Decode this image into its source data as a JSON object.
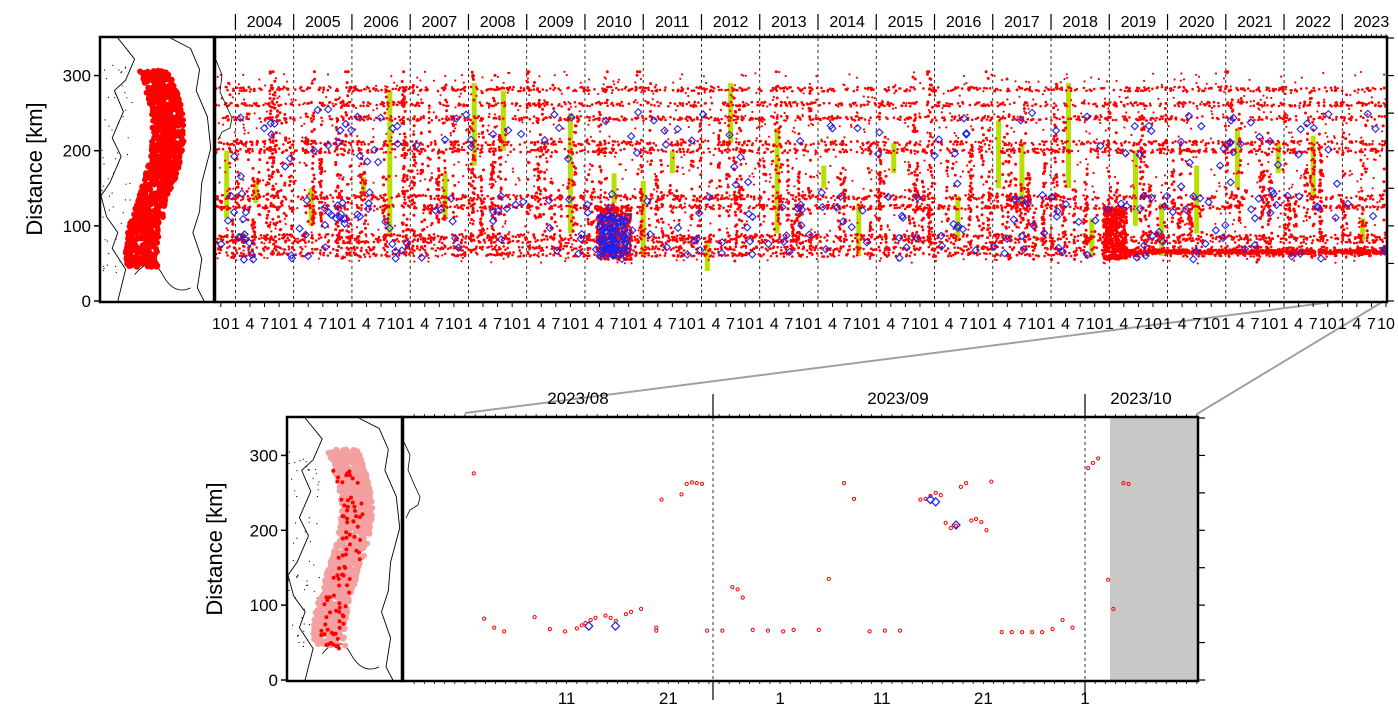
{
  "colors": {
    "event": "#ff0000",
    "event_light": "#f4a0a0",
    "diamond": "#2020ee",
    "highlight": "#b7e000",
    "shade": "#c8c8c8",
    "connector": "#a0a0a0",
    "grid": "#000000"
  },
  "chart_data": [
    {
      "id": "long-term",
      "type": "scatter",
      "ylabel": "Distance [km]",
      "ylim": [
        0,
        350
      ],
      "yticks": [
        "0",
        "100",
        "200",
        "300"
      ],
      "xlim": [
        "2003-09",
        "2023-10"
      ],
      "years": [
        "2004",
        "2005",
        "2006",
        "2007",
        "2008",
        "2009",
        "2010",
        "2011",
        "2012",
        "2013",
        "2014",
        "2015",
        "2016",
        "2017",
        "2018",
        "2019",
        "2020",
        "2021",
        "2022",
        "2023"
      ],
      "first_tick_labels": [
        "10"
      ],
      "month_tick_labels": [
        "1",
        "4",
        "7",
        "10"
      ],
      "grid": "dashed vertical at year boundaries",
      "series": [
        {
          "marker": "small red circle",
          "events": "dense swarms across 50-300 km, 2003-2023"
        },
        {
          "marker": "blue diamond",
          "events": "larger events, clustered at 60-140 km and 200-260 km"
        },
        {
          "marker": "yellow-green bar",
          "events": "highlighted episodes"
        }
      ],
      "inset_map": "event epicenters, north Japan (Tohoku)"
    },
    {
      "id": "zoom-recent",
      "type": "scatter",
      "ylabel": "Distance [km]",
      "ylim": [
        0,
        350
      ],
      "yticks": [
        "0",
        "100",
        "200",
        "300"
      ],
      "month_labels": [
        "2023/08",
        "2023/09",
        "2023/10"
      ],
      "day_labels": [
        "11",
        "21",
        "1",
        "11",
        "21",
        "1"
      ],
      "shaded_interval": "after 2023-10-01 (no data yet)",
      "grid": "dashed vertical at month boundaries",
      "inset_map": "recent epicenters over the long-term cloud (lighter)",
      "points_red": [
        [
          2023.5857,
          276
        ],
        [
          2023.5885,
          82
        ],
        [
          2023.5912,
          70
        ],
        [
          2023.5939,
          65
        ],
        [
          2023.6021,
          84
        ],
        [
          2023.6062,
          68
        ],
        [
          2023.6103,
          65
        ],
        [
          2023.6135,
          69
        ],
        [
          2023.6148,
          73
        ],
        [
          2023.6158,
          76
        ],
        [
          2023.6172,
          80
        ],
        [
          2023.6185,
          83
        ],
        [
          2023.6212,
          86
        ],
        [
          2023.6226,
          83
        ],
        [
          2023.624,
          79
        ],
        [
          2023.6267,
          88
        ],
        [
          2023.6281,
          91
        ],
        [
          2023.6308,
          95
        ],
        [
          2023.6349,
          66
        ],
        [
          2023.6349,
          70
        ],
        [
          2023.6363,
          241
        ],
        [
          2023.6417,
          248
        ],
        [
          2023.6431,
          262
        ],
        [
          2023.6445,
          264
        ],
        [
          2023.6458,
          263
        ],
        [
          2023.6472,
          262
        ],
        [
          2023.6486,
          66
        ],
        [
          2023.6527,
          66
        ],
        [
          2023.6554,
          124
        ],
        [
          2023.6568,
          121
        ],
        [
          2023.6582,
          110
        ],
        [
          2023.6609,
          67
        ],
        [
          2023.665,
          66
        ],
        [
          2023.6691,
          65
        ],
        [
          2023.6719,
          67
        ],
        [
          2023.6787,
          67
        ],
        [
          2023.6814,
          135
        ],
        [
          2023.6855,
          263
        ],
        [
          2023.6882,
          242
        ],
        [
          2023.6924,
          65
        ],
        [
          2023.6965,
          66
        ],
        [
          2023.7006,
          66
        ],
        [
          2023.7061,
          241
        ],
        [
          2023.7075,
          242
        ],
        [
          2023.7088,
          246
        ],
        [
          2023.7102,
          250
        ],
        [
          2023.7116,
          247
        ],
        [
          2023.7129,
          210
        ],
        [
          2023.7143,
          203
        ],
        [
          2023.7157,
          206
        ],
        [
          2023.717,
          258
        ],
        [
          2023.7184,
          263
        ],
        [
          2023.7198,
          213
        ],
        [
          2023.7211,
          215
        ],
        [
          2023.7225,
          211
        ],
        [
          2023.7239,
          200
        ],
        [
          2023.7252,
          265
        ],
        [
          2023.728,
          64
        ],
        [
          2023.7307,
          64
        ],
        [
          2023.7335,
          64
        ],
        [
          2023.7362,
          64
        ],
        [
          2023.7389,
          64
        ],
        [
          2023.7417,
          68
        ],
        [
          2023.7444,
          80
        ],
        [
          2023.7471,
          70
        ],
        [
          2023.7513,
          283
        ],
        [
          2023.7526,
          290
        ],
        [
          2023.754,
          296
        ],
        [
          2023.7567,
          134
        ],
        [
          2023.7581,
          95
        ],
        [
          2023.7608,
          263
        ],
        [
          2023.7622,
          262
        ]
      ],
      "points_diamond": [
        [
          2023.6167,
          72
        ],
        [
          2023.6239,
          72
        ],
        [
          2023.7088,
          241
        ],
        [
          2023.7102,
          238
        ],
        [
          2023.7157,
          207
        ]
      ]
    }
  ]
}
